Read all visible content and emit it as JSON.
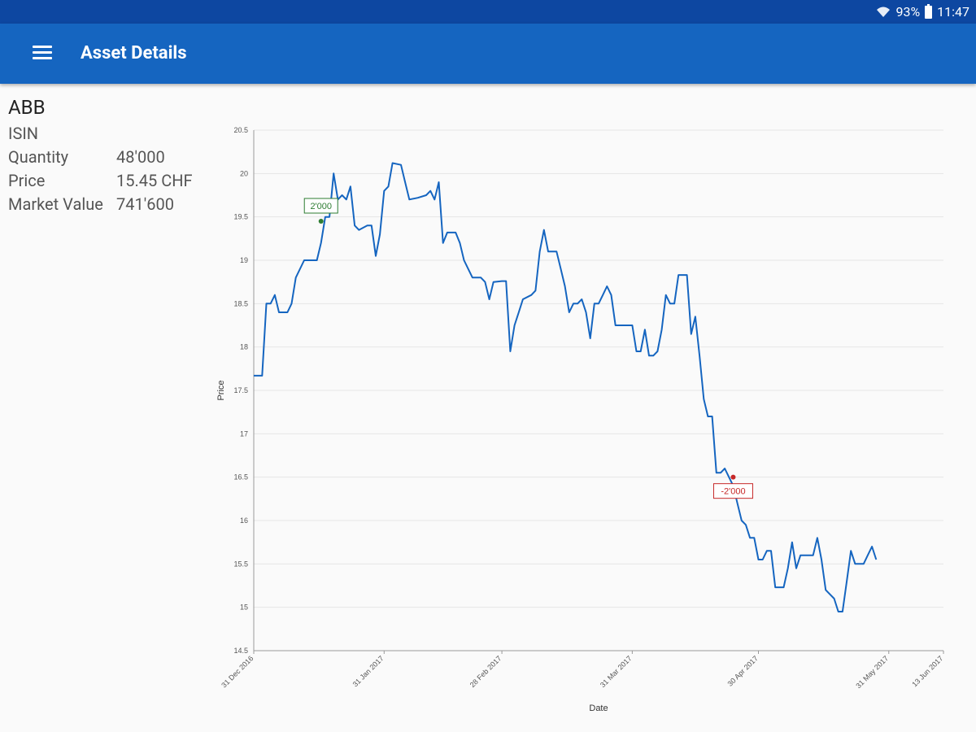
{
  "status_bar": {
    "battery": "93%",
    "time": "11:47"
  },
  "app_bar": {
    "title": "Asset Details"
  },
  "asset": {
    "name": "ABB",
    "isin_label": "ISIN",
    "quantity_label": "Quantity",
    "quantity": "48'000",
    "price_label": "Price",
    "price": "15.45 CHF",
    "market_value_label": "Market Value",
    "market_value": "741'600"
  },
  "colors": {
    "status_bar": "#0d47a1",
    "app_bar": "#1565c0",
    "line": "#1565c0",
    "buy": "#2e7d32",
    "sell": "#c62828"
  },
  "chart_data": {
    "type": "line",
    "xlabel": "Date",
    "ylabel": "Price",
    "ylim": [
      14.5,
      20.5
    ],
    "yticks": [
      14.5,
      15,
      15.5,
      16,
      16.5,
      17,
      17.5,
      18,
      18.5,
      19,
      19.5,
      20,
      20.5
    ],
    "xticks": [
      {
        "day": 0,
        "label": "31 Dec 2016"
      },
      {
        "day": 31,
        "label": "31 Jan 2017"
      },
      {
        "day": 59,
        "label": "28 Feb 2017"
      },
      {
        "day": 90,
        "label": "31 Mar 2017"
      },
      {
        "day": 120,
        "label": "30 Apr 2017"
      },
      {
        "day": 151,
        "label": "31 May 2017"
      },
      {
        "day": 164,
        "label": "13 Jun 2017"
      }
    ],
    "series": [
      {
        "name": "ABB",
        "points": [
          [
            0,
            17.67
          ],
          [
            2,
            17.67
          ],
          [
            3,
            18.5
          ],
          [
            4,
            18.5
          ],
          [
            5,
            18.6
          ],
          [
            6,
            18.4
          ],
          [
            8,
            18.4
          ],
          [
            9,
            18.5
          ],
          [
            10,
            18.8
          ],
          [
            12,
            19.0
          ],
          [
            14,
            19.0
          ],
          [
            15,
            19.0
          ],
          [
            16,
            19.2
          ],
          [
            17,
            19.5
          ],
          [
            18,
            19.5
          ],
          [
            19,
            20.0
          ],
          [
            20,
            19.7
          ],
          [
            21,
            19.75
          ],
          [
            22,
            19.7
          ],
          [
            23,
            19.85
          ],
          [
            24,
            19.4
          ],
          [
            25,
            19.35
          ],
          [
            27,
            19.4
          ],
          [
            28,
            19.4
          ],
          [
            29,
            19.05
          ],
          [
            30,
            19.3
          ],
          [
            31,
            19.8
          ],
          [
            32,
            19.85
          ],
          [
            33,
            20.12
          ],
          [
            35,
            20.1
          ],
          [
            36,
            19.9
          ],
          [
            37,
            19.7
          ],
          [
            39,
            19.72
          ],
          [
            41,
            19.75
          ],
          [
            42,
            19.8
          ],
          [
            43,
            19.7
          ],
          [
            44,
            19.9
          ],
          [
            45,
            19.2
          ],
          [
            46,
            19.32
          ],
          [
            48,
            19.32
          ],
          [
            49,
            19.2
          ],
          [
            50,
            19.0
          ],
          [
            51,
            18.9
          ],
          [
            52,
            18.8
          ],
          [
            54,
            18.8
          ],
          [
            55,
            18.75
          ],
          [
            56,
            18.55
          ],
          [
            57,
            18.75
          ],
          [
            59,
            18.76
          ],
          [
            60,
            18.76
          ],
          [
            61,
            17.95
          ],
          [
            62,
            18.25
          ],
          [
            63,
            18.4
          ],
          [
            64,
            18.55
          ],
          [
            66,
            18.6
          ],
          [
            67,
            18.65
          ],
          [
            68,
            19.1
          ],
          [
            69,
            19.35
          ],
          [
            70,
            19.1
          ],
          [
            72,
            19.1
          ],
          [
            73,
            18.9
          ],
          [
            74,
            18.7
          ],
          [
            75,
            18.4
          ],
          [
            76,
            18.5
          ],
          [
            77,
            18.5
          ],
          [
            78,
            18.55
          ],
          [
            79,
            18.4
          ],
          [
            80,
            18.1
          ],
          [
            81,
            18.5
          ],
          [
            82,
            18.5
          ],
          [
            83,
            18.6
          ],
          [
            84,
            18.7
          ],
          [
            85,
            18.6
          ],
          [
            86,
            18.25
          ],
          [
            88,
            18.25
          ],
          [
            89,
            18.25
          ],
          [
            90,
            18.25
          ],
          [
            91,
            17.95
          ],
          [
            92,
            17.95
          ],
          [
            93,
            18.2
          ],
          [
            94,
            17.9
          ],
          [
            95,
            17.9
          ],
          [
            96,
            17.95
          ],
          [
            97,
            18.2
          ],
          [
            98,
            18.6
          ],
          [
            99,
            18.5
          ],
          [
            100,
            18.5
          ],
          [
            101,
            18.83
          ],
          [
            103,
            18.83
          ],
          [
            104,
            18.15
          ],
          [
            105,
            18.35
          ],
          [
            106,
            17.9
          ],
          [
            107,
            17.4
          ],
          [
            108,
            17.2
          ],
          [
            109,
            17.2
          ],
          [
            110,
            16.55
          ],
          [
            111,
            16.55
          ],
          [
            112,
            16.6
          ],
          [
            113,
            16.5
          ],
          [
            114,
            16.4
          ],
          [
            115,
            16.2
          ],
          [
            116,
            16.0
          ],
          [
            117,
            15.95
          ],
          [
            118,
            15.8
          ],
          [
            119,
            15.8
          ],
          [
            120,
            15.55
          ],
          [
            121,
            15.55
          ],
          [
            122,
            15.65
          ],
          [
            123,
            15.65
          ],
          [
            124,
            15.23
          ],
          [
            126,
            15.23
          ],
          [
            127,
            15.45
          ],
          [
            128,
            15.75
          ],
          [
            129,
            15.45
          ],
          [
            130,
            15.6
          ],
          [
            132,
            15.6
          ],
          [
            133,
            15.6
          ],
          [
            134,
            15.8
          ],
          [
            135,
            15.55
          ],
          [
            136,
            15.2
          ],
          [
            137,
            15.15
          ],
          [
            138,
            15.1
          ],
          [
            139,
            14.95
          ],
          [
            140,
            14.95
          ],
          [
            141,
            15.3
          ],
          [
            142,
            15.65
          ],
          [
            143,
            15.5
          ],
          [
            145,
            15.5
          ],
          [
            146,
            15.6
          ],
          [
            147,
            15.7
          ],
          [
            148,
            15.55
          ]
        ]
      }
    ],
    "annotations": [
      {
        "label": "2'000",
        "day": 16,
        "price": 19.45,
        "kind": "buy"
      },
      {
        "label": "-2'000",
        "day": 114,
        "price": 16.5,
        "kind": "sell"
      }
    ]
  }
}
